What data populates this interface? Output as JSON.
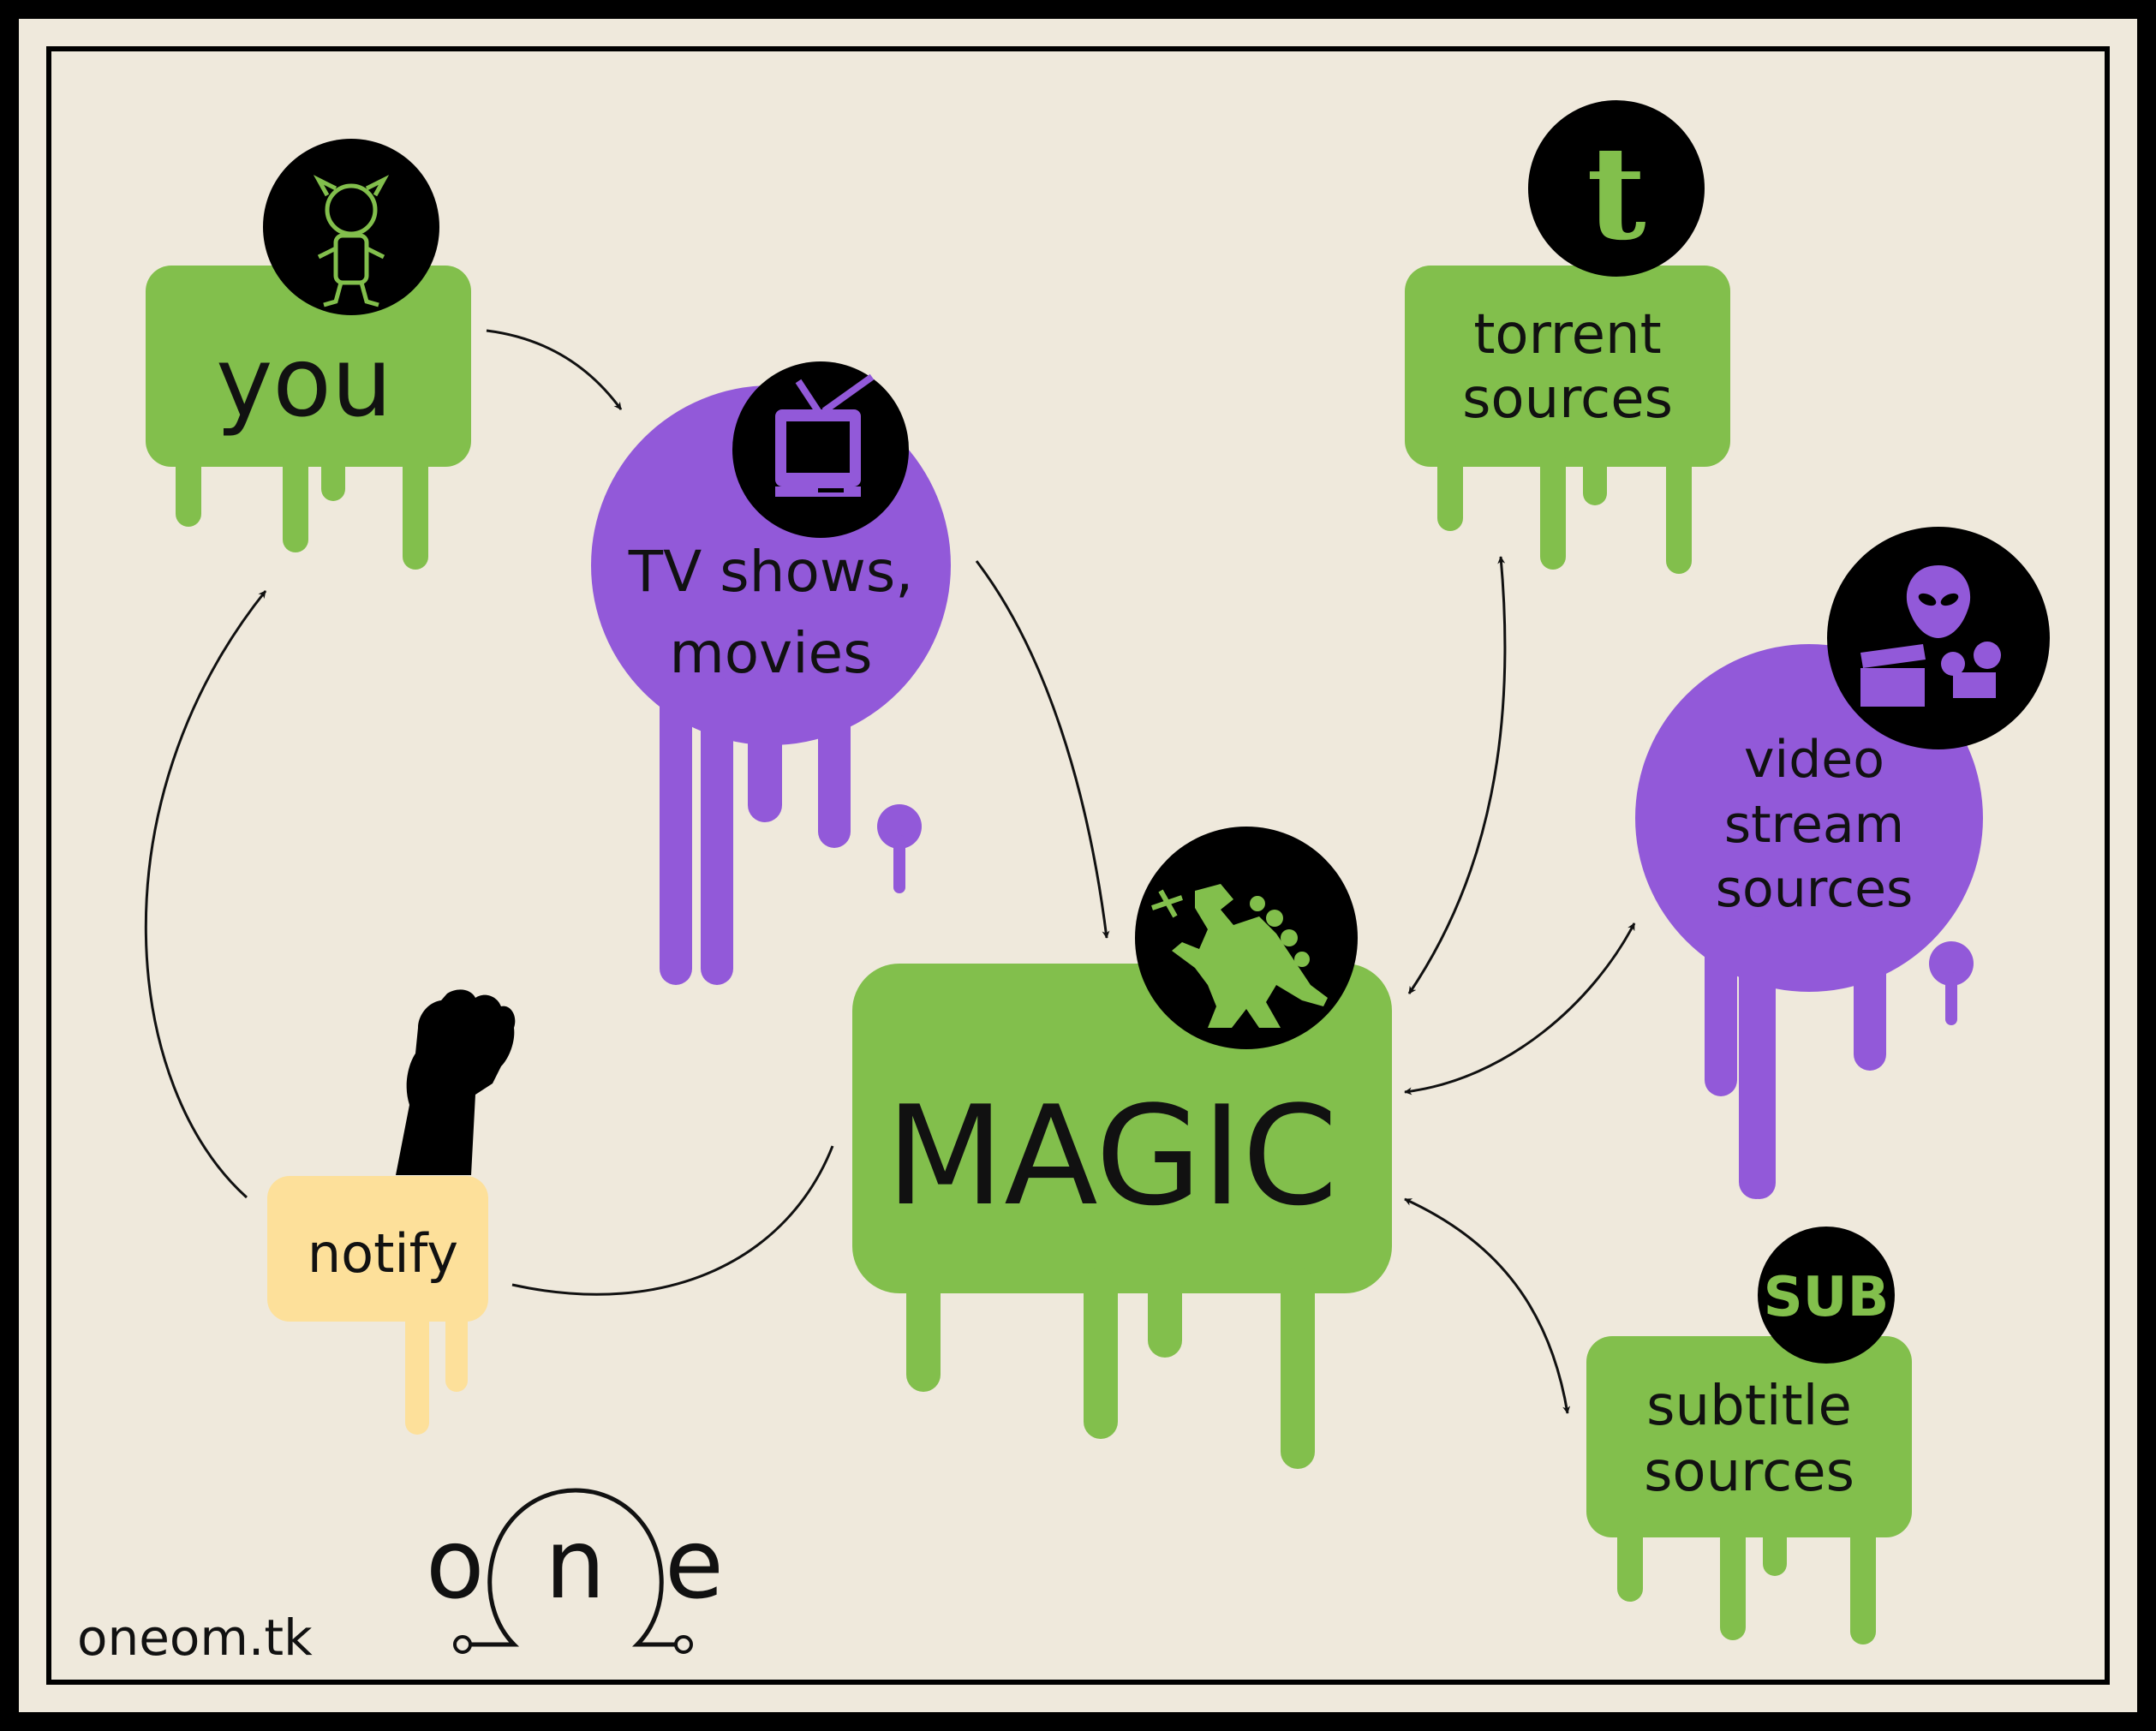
{
  "nodes": {
    "you": {
      "label": "you"
    },
    "tv": {
      "line1": "TV shows,",
      "line2": "movies"
    },
    "torrent": {
      "line1": "torrent",
      "line2": "sources"
    },
    "video": {
      "line1": "video",
      "line2": "stream",
      "line3": "sources"
    },
    "magic": {
      "label": "MAGIC"
    },
    "notify": {
      "label": "notify"
    },
    "subtitle": {
      "line1": "subtitle",
      "line2": "sources",
      "badge": "SUB"
    }
  },
  "footer": {
    "url": "oneom.tk",
    "logo": {
      "o": "o",
      "n": "n",
      "e": "e"
    }
  },
  "icons": {
    "you": "cartoon-character-icon",
    "tv": "television-icon",
    "torrent": "tumblr-t-icon",
    "video": "alien-clapboard-projector-icon",
    "magic": "godzilla-icon",
    "notify": "raised-fist-icon",
    "subtitle": "sub-badge-icon"
  },
  "colors": {
    "border": "#000000",
    "background": "#efe9dc",
    "green": "#82bf4c",
    "purple": "#9259d9",
    "yellow": "#fde09a",
    "icon_bg": "#000000"
  }
}
